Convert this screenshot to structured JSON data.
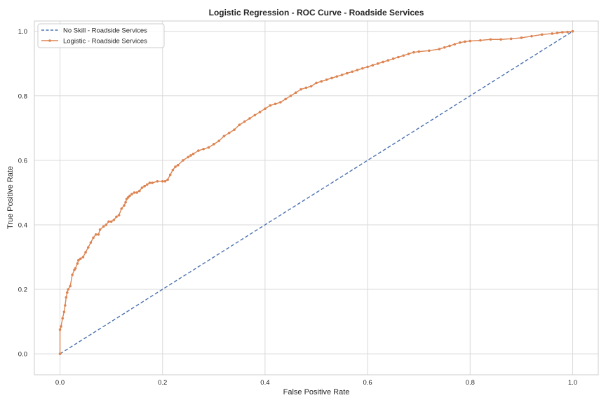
{
  "chart_data": {
    "type": "line",
    "title": "Logistic Regression - ROC Curve - Roadside Services",
    "xlabel": "False Positive Rate",
    "ylabel": "True Positive Rate",
    "xlim": [
      -0.05,
      1.05
    ],
    "ylim": [
      -0.065,
      1.032
    ],
    "x_ticks": [
      "0.0",
      "0.2",
      "0.4",
      "0.6",
      "0.8",
      "1.0"
    ],
    "y_ticks": [
      "0.0",
      "0.2",
      "0.4",
      "0.6",
      "0.8",
      "1.0"
    ],
    "grid": true,
    "legend_position": "top-left",
    "series": [
      {
        "name": "No Skill - Roadside Services",
        "style": "dashed",
        "color": "#4c72b0",
        "x": [
          0.0,
          1.0
        ],
        "y": [
          0.0,
          1.0
        ]
      },
      {
        "name": "Logistic - Roadside Services",
        "style": "solid-markers",
        "color": "#dd8452",
        "x": [
          0.0,
          0.0,
          0.002,
          0.005,
          0.008,
          0.01,
          0.012,
          0.014,
          0.016,
          0.02,
          0.024,
          0.028,
          0.03,
          0.034,
          0.036,
          0.04,
          0.045,
          0.05,
          0.055,
          0.06,
          0.065,
          0.07,
          0.075,
          0.078,
          0.085,
          0.09,
          0.095,
          0.1,
          0.105,
          0.11,
          0.115,
          0.12,
          0.125,
          0.128,
          0.13,
          0.133,
          0.136,
          0.14,
          0.145,
          0.15,
          0.155,
          0.16,
          0.165,
          0.17,
          0.175,
          0.18,
          0.19,
          0.2,
          0.205,
          0.21,
          0.215,
          0.22,
          0.225,
          0.23,
          0.24,
          0.25,
          0.255,
          0.26,
          0.27,
          0.28,
          0.29,
          0.3,
          0.31,
          0.32,
          0.33,
          0.34,
          0.35,
          0.36,
          0.37,
          0.38,
          0.39,
          0.4,
          0.41,
          0.42,
          0.43,
          0.44,
          0.45,
          0.46,
          0.47,
          0.48,
          0.49,
          0.5,
          0.51,
          0.52,
          0.53,
          0.54,
          0.55,
          0.56,
          0.57,
          0.58,
          0.59,
          0.6,
          0.61,
          0.62,
          0.63,
          0.64,
          0.65,
          0.66,
          0.67,
          0.68,
          0.69,
          0.7,
          0.72,
          0.74,
          0.75,
          0.76,
          0.77,
          0.78,
          0.79,
          0.8,
          0.82,
          0.84,
          0.86,
          0.88,
          0.9,
          0.92,
          0.94,
          0.96,
          0.97,
          0.98,
          0.99,
          1.0
        ],
        "y": [
          0.0,
          0.075,
          0.085,
          0.11,
          0.13,
          0.15,
          0.175,
          0.19,
          0.2,
          0.21,
          0.245,
          0.26,
          0.265,
          0.28,
          0.29,
          0.295,
          0.3,
          0.315,
          0.33,
          0.345,
          0.36,
          0.37,
          0.37,
          0.385,
          0.395,
          0.4,
          0.41,
          0.41,
          0.415,
          0.425,
          0.43,
          0.45,
          0.46,
          0.47,
          0.48,
          0.485,
          0.49,
          0.495,
          0.5,
          0.5,
          0.505,
          0.515,
          0.52,
          0.525,
          0.53,
          0.53,
          0.535,
          0.535,
          0.535,
          0.54,
          0.555,
          0.57,
          0.58,
          0.585,
          0.6,
          0.61,
          0.615,
          0.62,
          0.63,
          0.635,
          0.64,
          0.65,
          0.66,
          0.675,
          0.685,
          0.695,
          0.71,
          0.72,
          0.73,
          0.74,
          0.75,
          0.76,
          0.77,
          0.775,
          0.78,
          0.79,
          0.8,
          0.81,
          0.82,
          0.825,
          0.83,
          0.84,
          0.845,
          0.85,
          0.855,
          0.86,
          0.865,
          0.87,
          0.875,
          0.88,
          0.885,
          0.89,
          0.895,
          0.9,
          0.905,
          0.91,
          0.915,
          0.92,
          0.925,
          0.93,
          0.935,
          0.937,
          0.94,
          0.945,
          0.95,
          0.955,
          0.96,
          0.965,
          0.968,
          0.97,
          0.972,
          0.975,
          0.975,
          0.977,
          0.98,
          0.985,
          0.99,
          0.993,
          0.995,
          0.997,
          0.998,
          1.0
        ]
      }
    ]
  }
}
